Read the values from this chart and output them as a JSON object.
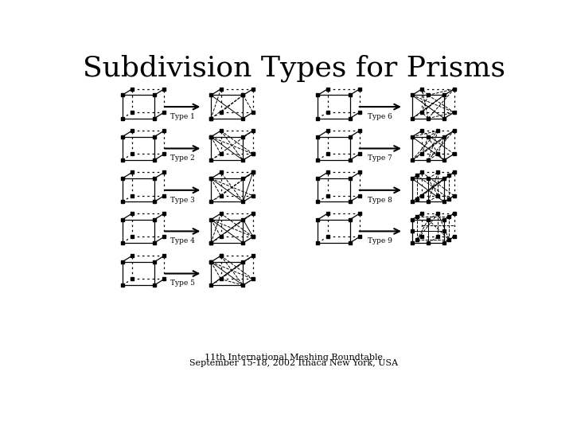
{
  "title": "Subdivision Types for Prisms",
  "title_fontsize": 26,
  "footer_line1": "11th International Meshing Roundtable",
  "footer_line2": "September 15-18, 2002 Ithaca New York, USA",
  "footer_fontsize": 8,
  "background_color": "#ffffff",
  "type_labels": [
    "Type 1",
    "Type 2",
    "Type 3",
    "Type 4",
    "Type 5",
    "Type 6",
    "Type 7",
    "Type 8",
    "Type 9"
  ]
}
